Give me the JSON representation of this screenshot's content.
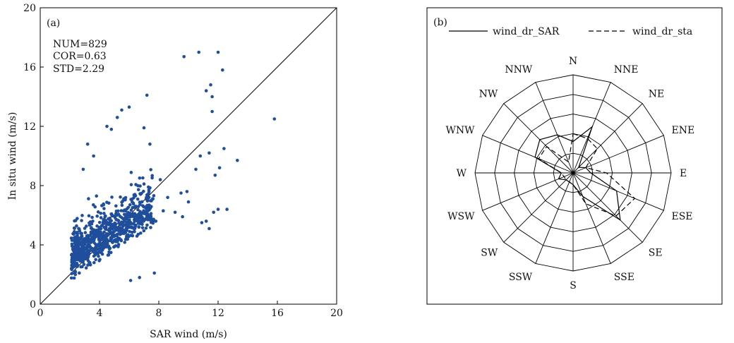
{
  "chart_data": [
    {
      "type": "scatter",
      "panel_label": "(a)",
      "xlabel": "SAR wind (m/s)",
      "ylabel": "In situ wind (m/s)",
      "xlim": [
        0,
        20
      ],
      "ylim": [
        0,
        20
      ],
      "xticks": [
        "0",
        "4",
        "8",
        "12",
        "16",
        "20"
      ],
      "yticks": [
        "0",
        "4",
        "8",
        "12",
        "16",
        "20"
      ],
      "stats": [
        "NUM=829",
        "COR=0.63",
        "STD=2.29"
      ],
      "reference_line": "y = x",
      "point_color": "#1f4e9c",
      "points": [
        [
          15.8,
          12.5
        ],
        [
          12.0,
          17.0
        ],
        [
          10.7,
          17.0
        ],
        [
          9.7,
          16.7
        ],
        [
          12.3,
          15.8
        ],
        [
          11.5,
          14.8
        ],
        [
          11.2,
          14.4
        ],
        [
          11.6,
          14.0
        ],
        [
          11.6,
          13.0
        ],
        [
          7.2,
          14.1
        ],
        [
          12.4,
          10.5
        ],
        [
          13.3,
          9.7
        ],
        [
          12.1,
          9.2
        ],
        [
          11.4,
          10.2
        ],
        [
          10.8,
          10.0
        ],
        [
          10.5,
          9.1
        ],
        [
          11.8,
          8.7
        ],
        [
          9.9,
          7.6
        ],
        [
          9.5,
          7.5
        ],
        [
          10.0,
          6.9
        ],
        [
          12.0,
          6.4
        ],
        [
          12.6,
          6.4
        ],
        [
          11.7,
          6.2
        ],
        [
          10.9,
          5.5
        ],
        [
          11.2,
          5.6
        ],
        [
          11.4,
          5.1
        ],
        [
          9.1,
          6.2
        ],
        [
          9.6,
          5.9
        ],
        [
          8.3,
          6.3
        ],
        [
          7.8,
          5.6
        ],
        [
          8.6,
          7.2
        ],
        [
          8.1,
          8.4
        ],
        [
          7.4,
          10.8
        ],
        [
          7.0,
          11.9
        ],
        [
          5.5,
          13.1
        ],
        [
          6.0,
          13.3
        ],
        [
          5.2,
          12.6
        ],
        [
          4.5,
          12.0
        ],
        [
          4.8,
          11.8
        ],
        [
          3.2,
          10.8
        ],
        [
          3.6,
          10.0
        ],
        [
          2.9,
          9.1
        ],
        [
          7.7,
          2.1
        ],
        [
          6.7,
          1.8
        ],
        [
          6.1,
          1.6
        ]
      ],
      "cloud": {
        "count": 784,
        "seed": 7
      }
    },
    {
      "type": "radar",
      "panel_label": "(b)",
      "axes": [
        "N",
        "NNE",
        "NE",
        "ENE",
        "E",
        "ESE",
        "SE",
        "SSE",
        "S",
        "SSW",
        "SW",
        "WSW",
        "W",
        "WNW",
        "NW",
        "NNW"
      ],
      "rings": 5,
      "max_value": 5,
      "series": [
        {
          "name": "wind_dr_SAR",
          "line_style": "solid",
          "values": [
            1.6,
            2.55,
            0.4,
            0.7,
            0.9,
            2.4,
            3.4,
            1.3,
            0.6,
            0.5,
            0.5,
            0.8,
            0.6,
            2.1,
            2.4,
            2.1
          ]
        },
        {
          "name": "wind_dr_sta",
          "line_style": "dashed",
          "values": [
            2.0,
            1.9,
            1.75,
            0.7,
            1.7,
            3.4,
            3.1,
            1.7,
            0.6,
            0.5,
            0.5,
            0.5,
            0.6,
            1.9,
            1.9,
            0.6
          ]
        }
      ]
    }
  ]
}
